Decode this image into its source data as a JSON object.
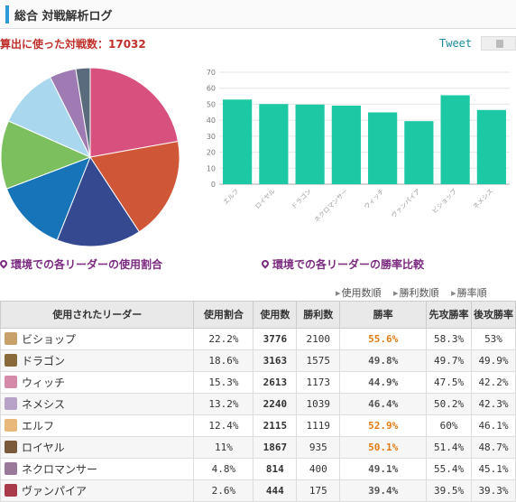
{
  "header": {
    "title": "総合 対戦解析ログ"
  },
  "summary": {
    "count_text": "算出に使った対戦数：17032"
  },
  "share": {
    "tweet_label": "Tweet"
  },
  "captions": {
    "pie": "環境での各リーダーの使用割合",
    "bar": "環境での各リーダーの勝率比較"
  },
  "sort_links": [
    "使用数順",
    "勝利数順",
    "勝率順"
  ],
  "table": {
    "headers": [
      "使用されたリーダー",
      "使用割合",
      "使用数",
      "勝利数",
      "勝率",
      "先攻勝率",
      "後攻勝率"
    ],
    "rows": [
      {
        "leader": "ビショップ",
        "ratio": "22.2%",
        "uses": "3776",
        "wins": "2100",
        "winrate": "55.6%",
        "first": "58.3%",
        "second": "53%",
        "avatar": "#c8a16a"
      },
      {
        "leader": "ドラゴン",
        "ratio": "18.6%",
        "uses": "3163",
        "wins": "1575",
        "winrate": "49.8%",
        "first": "49.7%",
        "second": "49.9%",
        "avatar": "#8a6a3a"
      },
      {
        "leader": "ウィッチ",
        "ratio": "15.3%",
        "uses": "2613",
        "wins": "1173",
        "winrate": "44.9%",
        "first": "47.5%",
        "second": "42.2%",
        "avatar": "#d48aa8"
      },
      {
        "leader": "ネメシス",
        "ratio": "13.2%",
        "uses": "2240",
        "wins": "1039",
        "winrate": "46.4%",
        "first": "50.2%",
        "second": "42.3%",
        "avatar": "#b8a3c8"
      },
      {
        "leader": "エルフ",
        "ratio": "12.4%",
        "uses": "2115",
        "wins": "1119",
        "winrate": "52.9%",
        "first": "60%",
        "second": "46.1%",
        "avatar": "#e8b87a"
      },
      {
        "leader": "ロイヤル",
        "ratio": "11%",
        "uses": "1867",
        "wins": "935",
        "winrate": "50.1%",
        "first": "51.4%",
        "second": "48.7%",
        "avatar": "#7a5a3a"
      },
      {
        "leader": "ネクロマンサー",
        "ratio": "4.8%",
        "uses": "814",
        "wins": "400",
        "winrate": "49.1%",
        "first": "55.4%",
        "second": "45.1%",
        "avatar": "#9a7a9a"
      },
      {
        "leader": "ヴァンパイア",
        "ratio": "2.6%",
        "uses": "444",
        "wins": "175",
        "winrate": "39.4%",
        "first": "39.5%",
        "second": "39.3%",
        "avatar": "#a83a4a"
      }
    ]
  },
  "chart_data": [
    {
      "type": "pie",
      "labels": [
        "ビショップ",
        "ドラゴン",
        "ウィッチ",
        "ネメシス",
        "エルフ",
        "ロイヤル",
        "ネクロマンサー",
        "ヴァンパイア"
      ],
      "values": [
        22.2,
        18.6,
        15.3,
        13.2,
        12.4,
        11,
        4.8,
        2.6
      ],
      "colors": [
        "#d8517e",
        "#cf5737",
        "#34498f",
        "#1774b8",
        "#7cbf5e",
        "#a9d7ee",
        "#9e7bb2",
        "#5b6b7e"
      ]
    },
    {
      "type": "bar",
      "categories": [
        "エルフ",
        "ロイヤル",
        "ドラゴン",
        "ネクロマンサー",
        "ウィッチ",
        "ヴァンパイア",
        "ビショップ",
        "ネメシス"
      ],
      "values": [
        52.9,
        50.1,
        49.8,
        49.1,
        44.9,
        39.4,
        55.6,
        46.4
      ],
      "yticks": [
        0,
        10,
        20,
        30,
        40,
        50,
        60,
        70
      ],
      "ylim": [
        0,
        70
      ],
      "color": "#1cc9a4"
    }
  ]
}
